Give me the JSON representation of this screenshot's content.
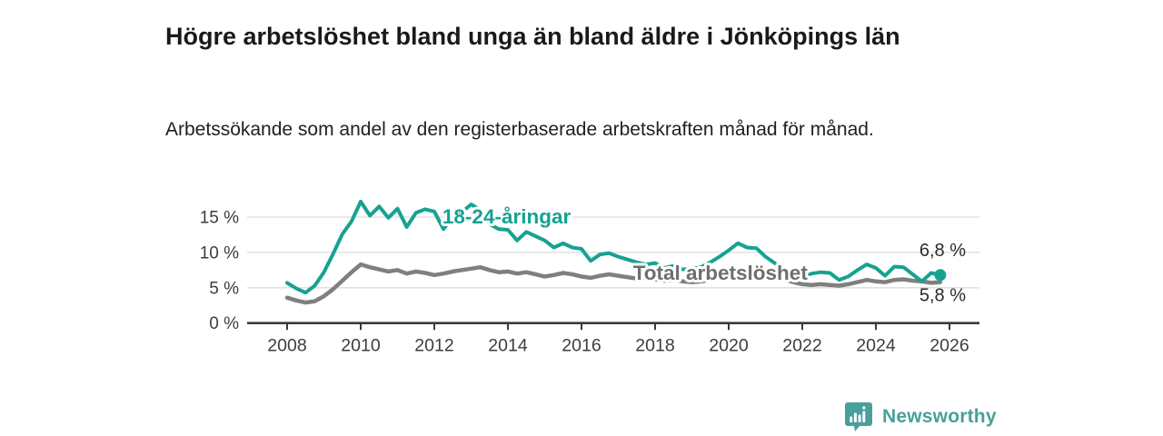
{
  "title": "Högre arbetslöshet bland unga än bland äldre i Jönköpings län",
  "subtitle": "Arbetssökande som andel av den registerbaserade arbetskraften månad för månad.",
  "branding": {
    "wordmark": "Newsworthy",
    "brand_color": "#47a09b"
  },
  "colors": {
    "young_line": "#16a291",
    "total_line": "#7f7f7f",
    "total_label": "#6e6e6e",
    "axis": "#3a3a3a",
    "grid": "#dcdcdc",
    "tick_text": "#3d3d3d",
    "end_label_text": "#2b2b2b",
    "text": "#1a1a1a"
  },
  "chart_data": {
    "type": "line",
    "title": "Högre arbetslöshet bland unga än bland äldre i Jönköpings län",
    "subtitle": "Arbetssökande som andel av den registerbaserade arbetskraften månad för månad.",
    "xlabel": "",
    "ylabel": "",
    "x_start": 2008,
    "x_step": 0.25,
    "xlim": [
      2006.9,
      2026.8
    ],
    "ylim": [
      0,
      18.5
    ],
    "grid": true,
    "legend": "inline-labels",
    "x_ticks": [
      2008,
      2010,
      2012,
      2014,
      2016,
      2018,
      2020,
      2022,
      2024,
      2026
    ],
    "y_ticks": [
      {
        "value": 0,
        "label": "0 %"
      },
      {
        "value": 5,
        "label": "5 %"
      },
      {
        "value": 10,
        "label": "10 %"
      },
      {
        "value": 15,
        "label": "15 %"
      }
    ],
    "series": [
      {
        "name": "18-24-åringar",
        "color": "#16a291",
        "line_width": 4,
        "end_dot": true,
        "end_label": "6,8 %",
        "label_pos": {
          "x": 2012.22,
          "y": 14.1
        },
        "values": [
          5.7,
          4.9,
          4.3,
          5.3,
          7.2,
          9.8,
          12.6,
          14.4,
          17.2,
          15.2,
          16.5,
          14.9,
          16.2,
          13.6,
          15.6,
          16.1,
          15.8,
          13.3,
          15.0,
          15.7,
          16.8,
          16.0,
          14.0,
          13.3,
          13.2,
          11.7,
          12.9,
          12.3,
          11.7,
          10.7,
          11.3,
          10.7,
          10.5,
          8.8,
          9.7,
          9.9,
          9.4,
          9.0,
          8.6,
          8.3,
          8.5,
          7.8,
          8.1,
          7.6,
          7.7,
          7.9,
          8.6,
          9.4,
          10.3,
          11.3,
          10.7,
          10.6,
          9.4,
          8.5,
          7.6,
          6.6,
          6.5,
          7.0,
          7.2,
          7.1,
          6.1,
          6.6,
          7.5,
          8.3,
          7.8,
          6.7,
          8.0,
          7.9,
          6.9,
          5.9,
          7.1,
          6.8
        ]
      },
      {
        "name": "Total arbetslöshet",
        "color": "#7f7f7f",
        "label_color": "#6e6e6e",
        "line_width": 4.5,
        "end_dot": false,
        "end_label": "5,8 %",
        "label_pos": {
          "x": 2017.4,
          "y": 6.1
        },
        "values": [
          3.6,
          3.2,
          2.9,
          3.1,
          3.8,
          4.8,
          6.0,
          7.2,
          8.3,
          7.9,
          7.6,
          7.3,
          7.5,
          7.0,
          7.3,
          7.1,
          6.8,
          7.0,
          7.3,
          7.5,
          7.7,
          7.9,
          7.5,
          7.2,
          7.3,
          7.0,
          7.2,
          6.9,
          6.6,
          6.8,
          7.1,
          6.9,
          6.6,
          6.4,
          6.7,
          6.9,
          6.7,
          6.5,
          6.3,
          6.4,
          6.2,
          6.0,
          6.1,
          5.9,
          5.8,
          5.9,
          6.1,
          6.4,
          6.8,
          7.4,
          7.6,
          7.3,
          7.0,
          6.6,
          6.2,
          5.8,
          5.5,
          5.4,
          5.5,
          5.4,
          5.3,
          5.5,
          5.8,
          6.1,
          5.9,
          5.8,
          6.1,
          6.2,
          6.0,
          5.9,
          5.7,
          5.8
        ]
      }
    ]
  }
}
